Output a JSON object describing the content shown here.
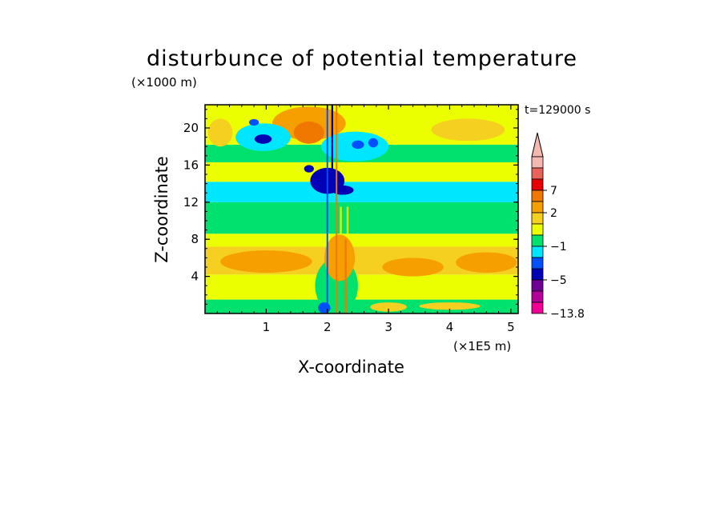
{
  "chart_data": {
    "type": "heatmap",
    "title": "disturbunce of potential temperature",
    "xlabel": "X-coordinate",
    "ylabel": "Z-coordinate",
    "x_unit_label": "(×1E5 m)",
    "y_unit_label": "(×1000 m)",
    "time_label": "t=129000 s",
    "xlim": [
      0,
      5.12
    ],
    "ylim": [
      0,
      22.5
    ],
    "x_ticks": [
      1,
      2,
      3,
      4,
      5
    ],
    "y_ticks": [
      4,
      8,
      12,
      16,
      20
    ],
    "colorbar": {
      "levels": [
        {
          "color": "#f5b8b0",
          "label": ""
        },
        {
          "color": "#e8645a",
          "label": ""
        },
        {
          "color": "#e60000",
          "label": "7"
        },
        {
          "color": "#f07800",
          "label": ""
        },
        {
          "color": "#f5a000",
          "label": "2"
        },
        {
          "color": "#f5d020",
          "label": ""
        },
        {
          "color": "#ebff00",
          "label": ""
        },
        {
          "color": "#00e16e",
          "label": "−1"
        },
        {
          "color": "#00e6ff",
          "label": ""
        },
        {
          "color": "#0050ff",
          "label": ""
        },
        {
          "color": "#0000b4",
          "label": "−5"
        },
        {
          "color": "#6e0096",
          "label": ""
        },
        {
          "color": "#b4009b",
          "label": ""
        },
        {
          "color": "#f00096",
          "label": "−13.8"
        }
      ]
    },
    "bands": [
      {
        "z0": 0,
        "z1": 1.5,
        "color": "#00e16e"
      },
      {
        "z0": 1.5,
        "z1": 4.2,
        "color": "#ebff00"
      },
      {
        "z0": 4.2,
        "z1": 7.2,
        "color": "#f5d020"
      },
      {
        "z0": 7.2,
        "z1": 8.6,
        "color": "#ebff00"
      },
      {
        "z0": 8.6,
        "z1": 12.0,
        "color": "#00e16e"
      },
      {
        "z0": 12.0,
        "z1": 14.2,
        "color": "#00e6ff"
      },
      {
        "z0": 14.2,
        "z1": 16.3,
        "color": "#ebff00"
      },
      {
        "z0": 16.3,
        "z1": 18.2,
        "color": "#00e16e"
      },
      {
        "z0": 18.2,
        "z1": 22.5,
        "color": "#ebff00"
      }
    ],
    "features": [
      {
        "kind": "ellipse",
        "x": 1.0,
        "z": 5.6,
        "rx": 0.75,
        "rz": 1.2,
        "color": "#f5a000"
      },
      {
        "kind": "ellipse",
        "x": 3.4,
        "z": 5.0,
        "rx": 0.5,
        "rz": 1.0,
        "color": "#f5a000"
      },
      {
        "kind": "ellipse",
        "x": 4.6,
        "z": 5.5,
        "rx": 0.5,
        "rz": 1.1,
        "color": "#f5a000"
      },
      {
        "kind": "ellipse",
        "x": 4.3,
        "z": 19.8,
        "rx": 0.6,
        "rz": 1.2,
        "color": "#f5d020"
      },
      {
        "kind": "ellipse",
        "x": 1.7,
        "z": 20.5,
        "rx": 0.6,
        "rz": 1.8,
        "color": "#f5a000"
      },
      {
        "kind": "ellipse",
        "x": 1.7,
        "z": 19.5,
        "rx": 0.25,
        "rz": 1.2,
        "color": "#f07800"
      },
      {
        "kind": "ellipse",
        "x": 0.25,
        "z": 19.5,
        "rx": 0.2,
        "rz": 1.5,
        "color": "#f5d020"
      },
      {
        "kind": "ellipse",
        "x": 0.95,
        "z": 19.0,
        "rx": 0.45,
        "rz": 1.5,
        "color": "#00e6ff"
      },
      {
        "kind": "ellipse",
        "x": 0.95,
        "z": 18.8,
        "rx": 0.14,
        "rz": 0.5,
        "color": "#0000b4"
      },
      {
        "kind": "ellipse",
        "x": 0.8,
        "z": 20.6,
        "rx": 0.08,
        "rz": 0.35,
        "color": "#0050ff"
      },
      {
        "kind": "ellipse",
        "x": 2.45,
        "z": 18.0,
        "rx": 0.55,
        "rz": 1.6,
        "color": "#00e6ff"
      },
      {
        "kind": "ellipse",
        "x": 2.5,
        "z": 18.2,
        "rx": 0.1,
        "rz": 0.45,
        "color": "#0050ff"
      },
      {
        "kind": "ellipse",
        "x": 2.75,
        "z": 18.4,
        "rx": 0.08,
        "rz": 0.5,
        "color": "#0050ff"
      },
      {
        "kind": "ellipse",
        "x": 2.0,
        "z": 14.3,
        "rx": 0.28,
        "rz": 1.4,
        "color": "#0000b4"
      },
      {
        "kind": "ellipse",
        "x": 2.25,
        "z": 13.3,
        "rx": 0.18,
        "rz": 0.5,
        "color": "#0000b4"
      },
      {
        "kind": "ellipse",
        "x": 1.7,
        "z": 15.6,
        "rx": 0.08,
        "rz": 0.4,
        "color": "#0000b4"
      },
      {
        "kind": "ellipse",
        "x": 2.15,
        "z": 3.0,
        "rx": 0.35,
        "rz": 3.0,
        "color": "#00e16e"
      },
      {
        "kind": "ellipse",
        "x": 2.2,
        "z": 6.0,
        "rx": 0.25,
        "rz": 2.5,
        "color": "#f5a000"
      },
      {
        "kind": "ellipse",
        "x": 1.95,
        "z": 0.6,
        "rx": 0.1,
        "rz": 0.6,
        "color": "#0050ff"
      },
      {
        "kind": "ellipse",
        "x": 3.0,
        "z": 0.7,
        "rx": 0.3,
        "rz": 0.5,
        "color": "#f5d020"
      },
      {
        "kind": "ellipse",
        "x": 4.0,
        "z": 0.8,
        "rx": 0.5,
        "rz": 0.4,
        "color": "#f5d020"
      },
      {
        "kind": "stripe",
        "x": 2.0,
        "z0": 0.0,
        "z1": 22.5,
        "width": 0.025,
        "color": "#0050ff"
      },
      {
        "kind": "stripe",
        "x": 2.08,
        "z0": 13.0,
        "z1": 22.5,
        "width": 0.03,
        "color": "#0000b4"
      },
      {
        "kind": "stripe",
        "x": 2.15,
        "z0": 0.0,
        "z1": 22.5,
        "width": 0.025,
        "color": "#f07800"
      },
      {
        "kind": "stripe",
        "x": 2.22,
        "z0": 8.5,
        "z1": 11.5,
        "width": 0.03,
        "color": "#ebff00"
      },
      {
        "kind": "stripe",
        "x": 2.33,
        "z0": 8.5,
        "z1": 11.5,
        "width": 0.03,
        "color": "#ebff00"
      },
      {
        "kind": "stripe",
        "x": 2.3,
        "z0": 0.0,
        "z1": 8.0,
        "width": 0.03,
        "color": "#f07800"
      }
    ]
  }
}
